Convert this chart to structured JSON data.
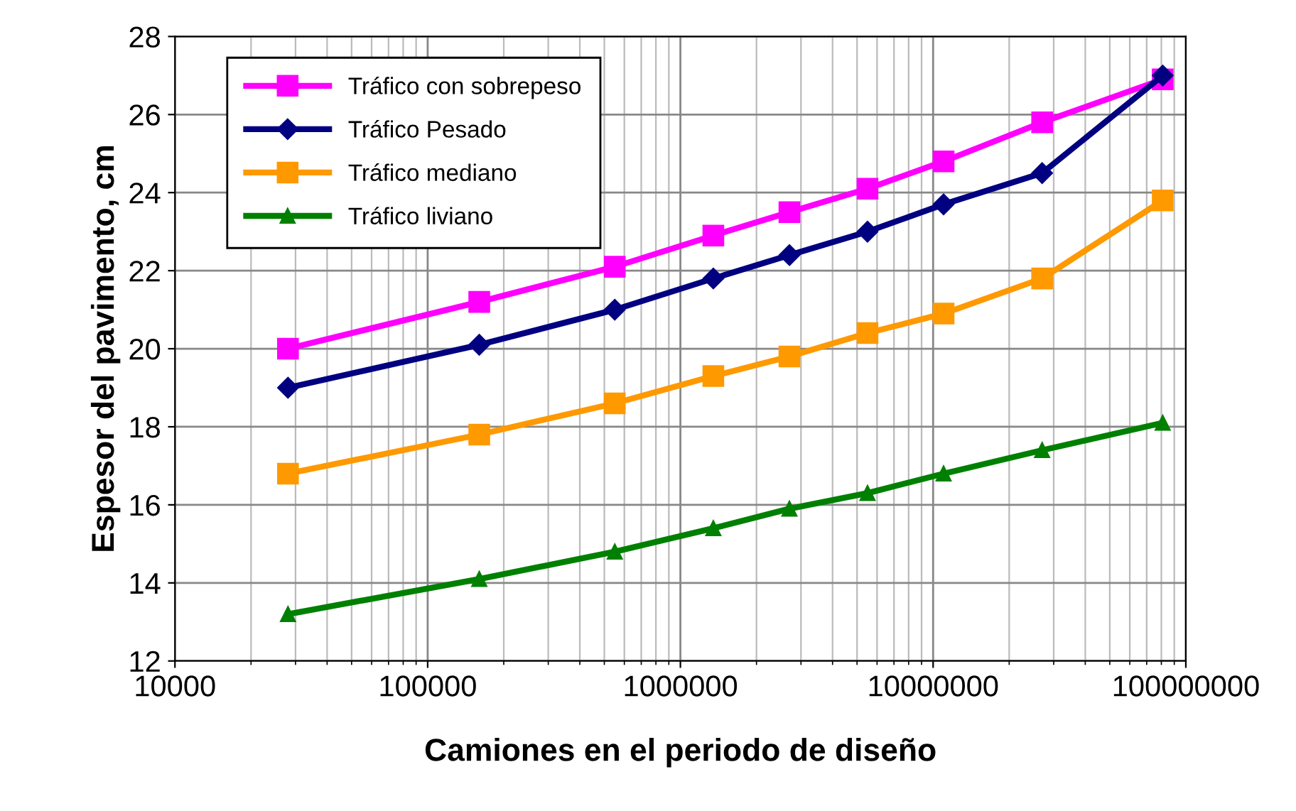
{
  "chart_data": {
    "type": "line",
    "xlabel": "Camiones en el periodo de diseño",
    "ylabel": "Espesor del pavimento, cm",
    "x": [
      28000,
      160000,
      550000,
      1350000,
      2700000,
      5500000,
      11000000,
      27000000,
      81000000
    ],
    "series": [
      {
        "name": "Tráfico con sobrepeso",
        "color": "#ff00ff",
        "marker": "square",
        "values": [
          20.0,
          21.2,
          22.1,
          22.9,
          23.5,
          24.1,
          24.8,
          25.8,
          26.9
        ]
      },
      {
        "name": "Tráfico Pesado",
        "color": "#000080",
        "marker": "diamond",
        "values": [
          19.0,
          20.1,
          21.0,
          21.8,
          22.4,
          23.0,
          23.7,
          24.5,
          27.0
        ]
      },
      {
        "name": "Tráfico mediano",
        "color": "#ff9900",
        "marker": "square",
        "values": [
          16.8,
          17.8,
          18.6,
          19.3,
          19.8,
          20.4,
          20.9,
          21.8,
          23.8
        ]
      },
      {
        "name": "Tráfico liviano",
        "color": "#008000",
        "marker": "triangle",
        "values": [
          13.2,
          14.1,
          14.8,
          15.4,
          15.9,
          16.3,
          16.8,
          17.4,
          18.1
        ]
      }
    ],
    "log": "x",
    "xlim": [
      10000,
      100000000
    ],
    "xticks": [
      10000,
      100000,
      1000000,
      10000000,
      100000000
    ],
    "ylim": [
      12,
      28
    ],
    "yticks": [
      12,
      14,
      16,
      18,
      20,
      22,
      24,
      26,
      28
    ],
    "grid": true,
    "legend": "top left",
    "line_style": "solid"
  }
}
